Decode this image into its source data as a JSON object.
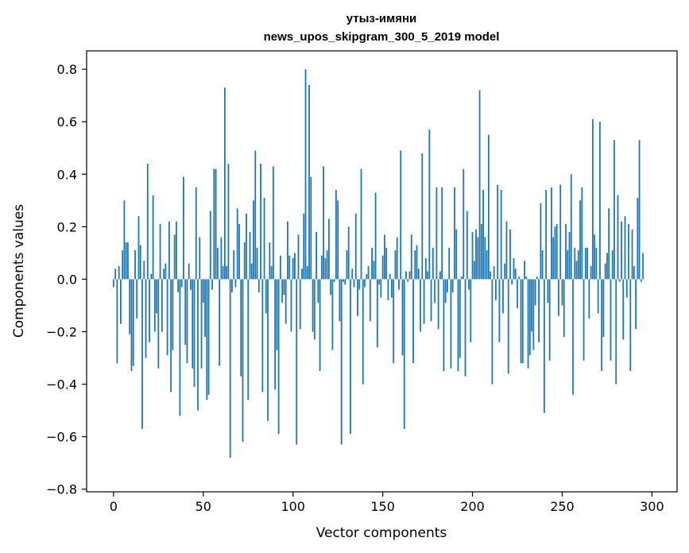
{
  "chart_data": {
    "type": "bar",
    "title_line1": "утыз-имяни",
    "title_line2": "news_upos_skipgram_300_5_2019 model",
    "xlabel": "Vector components",
    "ylabel": "Components values",
    "xlim": [
      -15,
      314
    ],
    "ylim": [
      -0.81,
      0.87
    ],
    "xticks": [
      0,
      50,
      100,
      150,
      200,
      250,
      300
    ],
    "xtick_labels": [
      "0",
      "50",
      "100",
      "150",
      "200",
      "250",
      "300"
    ],
    "yticks": [
      -0.8,
      -0.6,
      -0.4,
      -0.2,
      0.0,
      0.2,
      0.4,
      0.6,
      0.8
    ],
    "ytick_labels": [
      "−0.8",
      "−0.6",
      "−0.4",
      "−0.2",
      "0.0",
      "0.2",
      "0.4",
      "0.6",
      "0.8"
    ],
    "bar_color": "#1f77b4",
    "values": [
      -0.03,
      0.04,
      -0.32,
      0.05,
      -0.17,
      0.11,
      0.3,
      0.14,
      0.14,
      -0.21,
      -0.35,
      -0.33,
      0.11,
      -0.15,
      0.24,
      0.13,
      -0.57,
      0.07,
      -0.3,
      0.44,
      -0.24,
      0.02,
      0.32,
      -0.2,
      -0.13,
      -0.34,
      0.21,
      -0.2,
      0.04,
      0.06,
      -0.29,
      0.22,
      -0.43,
      -0.27,
      0.17,
      0.22,
      -0.05,
      -0.52,
      -0.03,
      0.39,
      -0.25,
      -0.32,
      0.06,
      -0.04,
      -0.34,
      -0.41,
      0.35,
      -0.5,
      0.16,
      -0.34,
      -0.09,
      -0.22,
      -0.46,
      -0.44,
      0.26,
      -0.04,
      0.42,
      0.42,
      0.12,
      -0.33,
      0.16,
      0.05,
      0.73,
      0.05,
      0.44,
      -0.68,
      -0.05,
      0.11,
      -0.03,
      0.27,
      0.21,
      -0.37,
      -0.62,
      0.14,
      0.25,
      -0.46,
      0.18,
      0.06,
      0.3,
      0.49,
      0.12,
      -0.05,
      0.44,
      -0.43,
      0.31,
      -0.13,
      -0.54,
      0.14,
      0.05,
      0.43,
      -0.42,
      -0.27,
      -0.59,
      0.09,
      -0.09,
      -0.06,
      -0.17,
      0.22,
      0.09,
      -0.2,
      0.08,
      0.1,
      -0.63,
      0.17,
      -0.19,
      0.04,
      0.25,
      0.8,
      0.05,
      0.74,
      0.39,
      -0.2,
      -0.23,
      0.18,
      -0.09,
      -0.35,
      0.09,
      0.43,
      0.08,
      0.11,
      0.23,
      -0.06,
      -0.27,
      -0.01,
      0.34,
      0.3,
      -0.16,
      -0.63,
      -0.01,
      -0.02,
      0.11,
      0.2,
      -0.59,
      0.04,
      -0.03,
      0.25,
      -0.14,
      -0.04,
      0.42,
      -0.4,
      -0.03,
      0.02,
      0.05,
      -0.16,
      0.12,
      0.07,
      0.33,
      -0.26,
      -0.02,
      -0.07,
      0.09,
      0.17,
      0.12,
      -0.08,
      0.02,
      -0.07,
      -0.32,
      0.11,
      0.16,
      -0.04,
      0.49,
      -0.29,
      -0.57,
      0.03,
      -0.01,
      0.03,
      0.17,
      -0.32,
      0.11,
      0.13,
      0.04,
      -0.2,
      0.48,
      -0.17,
      0.08,
      0.03,
      0.57,
      -0.16,
      0.12,
      -0.09,
      0.35,
      -0.19,
      0.03,
      0.35,
      -0.35,
      -0.09,
      -0.05,
      0.12,
      -0.34,
      -0.05,
      0.35,
      0.19,
      -0.35,
      -0.3,
      0.01,
      0.42,
      -0.37,
      0.26,
      -0.04,
      -0.24,
      0.18,
      0.07,
      0.19,
      0.16,
      0.72,
      0.21,
      0.34,
      0.16,
      0.11,
      0.55,
      0.03,
      -0.4,
      0.05,
      -0.08,
      0.36,
      -0.24,
      0.34,
      -0.13,
      0.06,
      0.22,
      -0.36,
      0.19,
      -0.02,
      0.08,
      0.04,
      -0.11,
      0.01,
      -0.32,
      -0.32,
      0.07,
      0.01,
      -0.34,
      -0.29,
      -0.2,
      -0.27,
      -0.1,
      0.01,
      -0.24,
      0.29,
      0.11,
      -0.51,
      0.34,
      -0.09,
      -0.31,
      0.35,
      0.16,
      0.2,
      0.21,
      -0.14,
      0.36,
      -0.1,
      -0.22,
      0.21,
      0.11,
      0.18,
      0.4,
      -0.44,
      0.12,
      0.07,
      0.11,
      0.3,
      0.35,
      -0.31,
      0.12,
      0.12,
      -0.15,
      0.05,
      0.61,
      0.17,
      0.12,
      -0.13,
      0.6,
      -0.35,
      -0.22,
      0.06,
      0.1,
      0.27,
      -0.31,
      0.11,
      0.53,
      -0.4,
      0.32,
      -0.01,
      0.22,
      -0.23,
      0.24,
      -0.07,
      0.21,
      -0.35,
      0.19,
      0.05,
      -0.19,
      0.31,
      0.53,
      -0.01,
      0.1
    ]
  }
}
